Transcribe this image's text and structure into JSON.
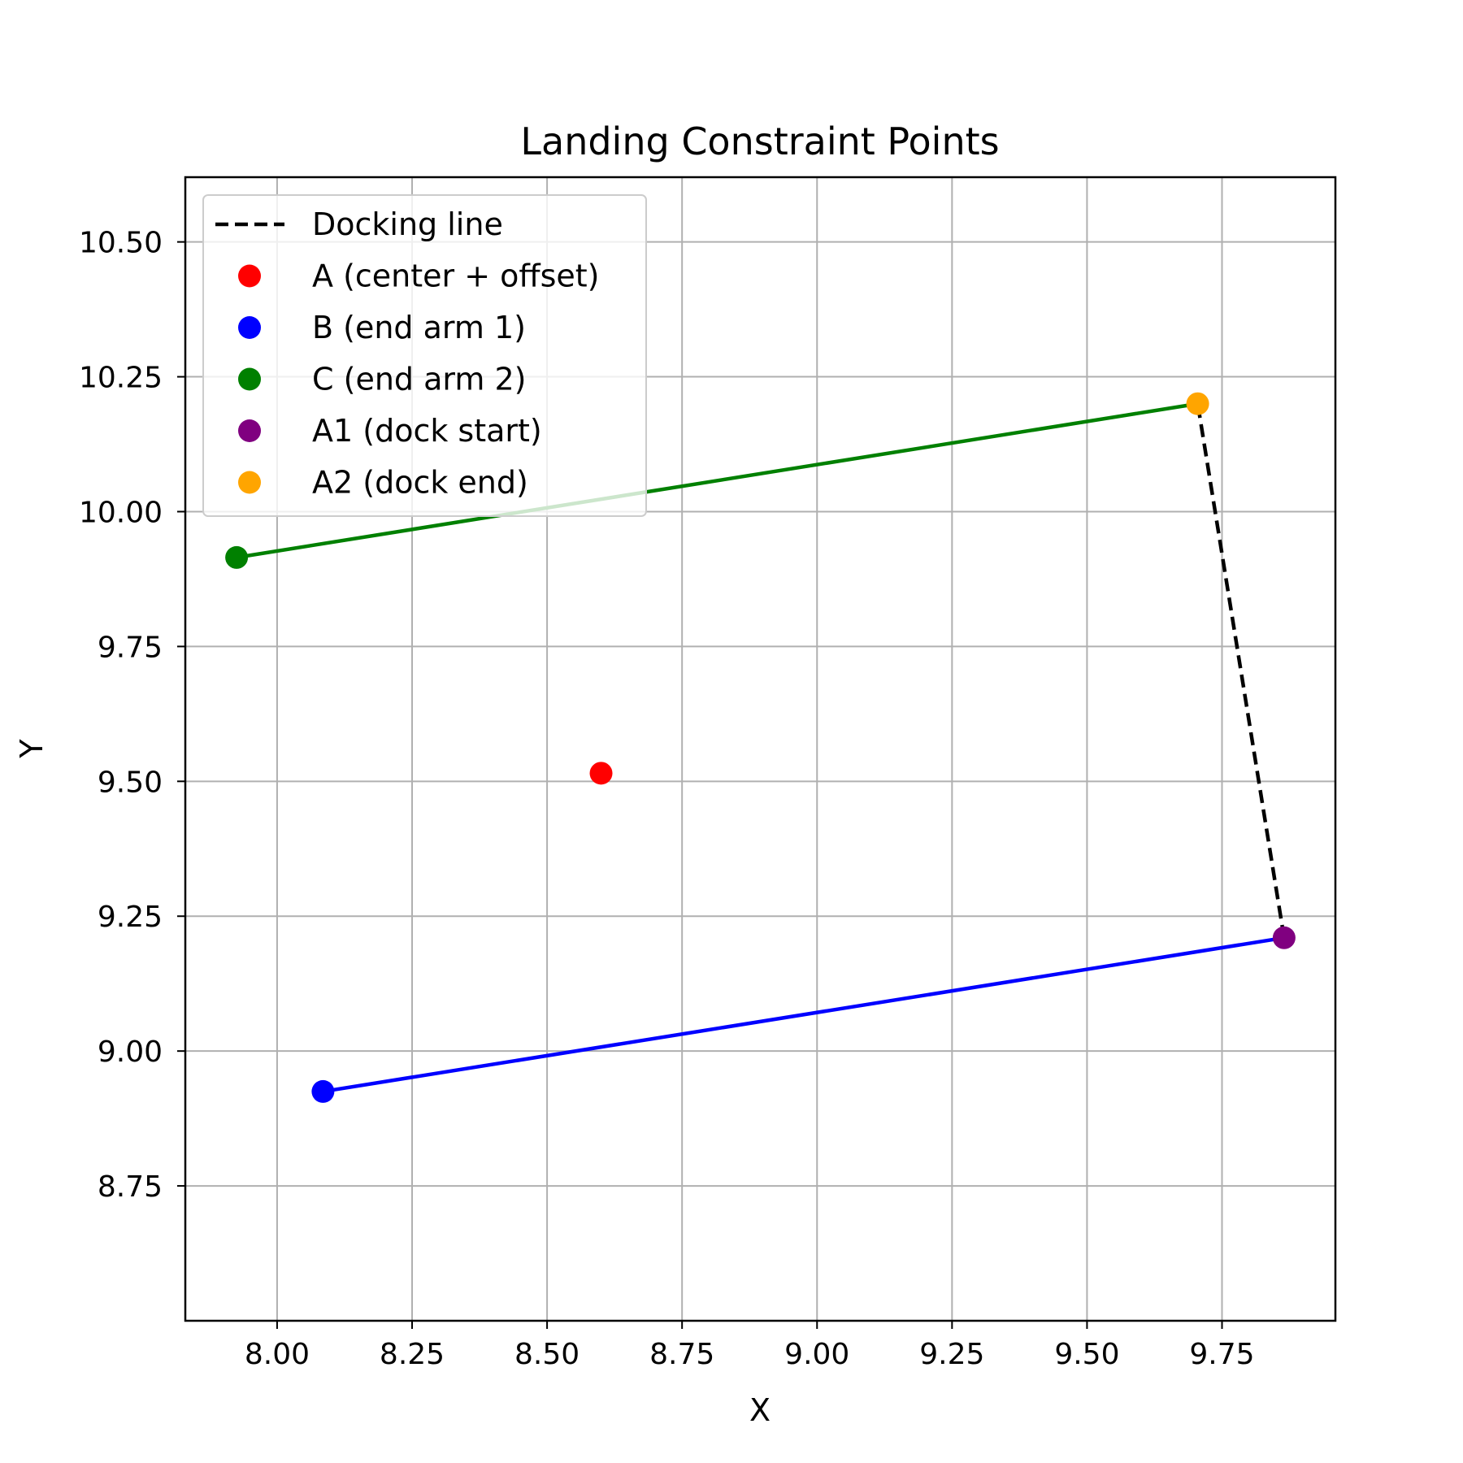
{
  "chart_data": {
    "type": "scatter",
    "title": "Landing Constraint Points",
    "xlabel": "X",
    "ylabel": "Y",
    "xlim": [
      7.83,
      9.96
    ],
    "ylim": [
      8.5,
      10.62
    ],
    "xticks": [
      "8.00",
      "8.25",
      "8.50",
      "8.75",
      "9.00",
      "9.25",
      "9.50",
      "9.75"
    ],
    "yticks": [
      "8.75",
      "9.00",
      "9.25",
      "9.50",
      "9.75",
      "10.00",
      "10.25",
      "10.50"
    ],
    "grid": true,
    "legend_position": "upper-left",
    "lines": [
      {
        "style": "solid",
        "color": "#0000ff",
        "x": [
          8.085,
          9.865
        ],
        "y": [
          8.925,
          9.21
        ]
      },
      {
        "style": "solid",
        "color": "#008000",
        "x": [
          7.925,
          9.705
        ],
        "y": [
          9.915,
          10.2
        ]
      },
      {
        "name": "Docking line",
        "style": "dashed",
        "color": "#000000",
        "x": [
          9.865,
          9.705
        ],
        "y": [
          9.21,
          10.2
        ]
      }
    ],
    "points": [
      {
        "name": "A (center + offset)",
        "color": "#ff0000",
        "x": 8.6,
        "y": 9.515
      },
      {
        "name": "B (end arm 1)",
        "color": "#0000ff",
        "x": 8.085,
        "y": 8.925
      },
      {
        "name": "C (end arm 2)",
        "color": "#008000",
        "x": 7.925,
        "y": 9.915
      },
      {
        "name": "A1 (dock start)",
        "color": "#800080",
        "x": 9.865,
        "y": 9.21
      },
      {
        "name": "A2 (dock end)",
        "color": "#ffa500",
        "x": 9.705,
        "y": 10.2
      }
    ],
    "legend": [
      {
        "label": "Docking line",
        "kind": "line",
        "color": "#000000"
      },
      {
        "label": "A (center + offset)",
        "kind": "marker",
        "color": "#ff0000"
      },
      {
        "label": "B (end arm 1)",
        "kind": "marker",
        "color": "#0000ff"
      },
      {
        "label": "C (end arm 2)",
        "kind": "marker",
        "color": "#008000"
      },
      {
        "label": "A1 (dock start)",
        "kind": "marker",
        "color": "#800080"
      },
      {
        "label": "A2 (dock end)",
        "kind": "marker",
        "color": "#ffa500"
      }
    ]
  }
}
